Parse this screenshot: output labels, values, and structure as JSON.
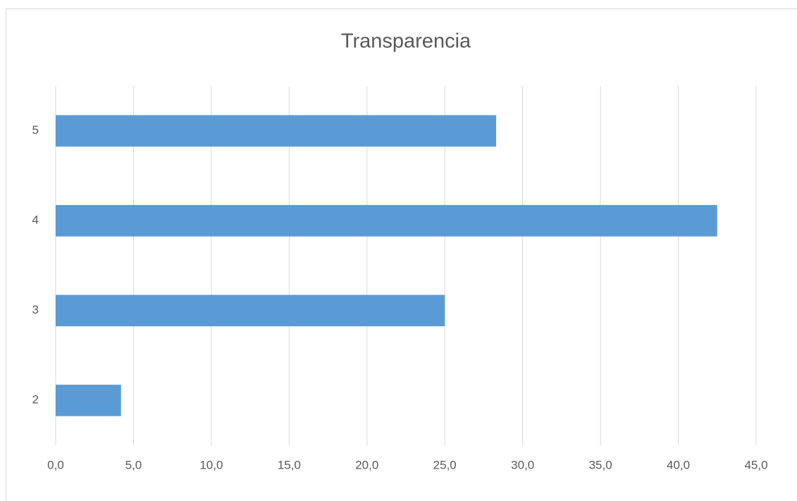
{
  "chart_data": {
    "type": "hbar",
    "title": "Transparencia",
    "categories": [
      "2",
      "3",
      "4",
      "5"
    ],
    "values": [
      4.2,
      25.0,
      42.5,
      28.3
    ],
    "color": "#5b9bd5",
    "xlim": [
      0,
      45
    ],
    "xticks": [
      {
        "value": 0,
        "label": "0,0"
      },
      {
        "value": 5,
        "label": "5,0"
      },
      {
        "value": 10,
        "label": "10,0"
      },
      {
        "value": 15,
        "label": "15,0"
      },
      {
        "value": 20,
        "label": "20,0"
      },
      {
        "value": 25,
        "label": "25,0"
      },
      {
        "value": 30,
        "label": "30,0"
      },
      {
        "value": 35,
        "label": "35,0"
      },
      {
        "value": 40,
        "label": "40,0"
      },
      {
        "value": 45,
        "label": "45,0"
      }
    ],
    "grid": true
  }
}
